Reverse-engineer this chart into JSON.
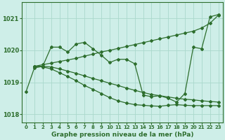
{
  "title": "Graphe pression niveau de la mer (hPa)",
  "background_color": "#ceeee8",
  "grid_color": "#aad8cc",
  "line_color": "#2d6e2d",
  "ylim": [
    1017.75,
    1021.5
  ],
  "yticks": [
    1018,
    1019,
    1020,
    1021
  ],
  "xticks": [
    0,
    1,
    2,
    3,
    4,
    5,
    6,
    7,
    8,
    9,
    10,
    11,
    12,
    13,
    14,
    15,
    16,
    17,
    18,
    19,
    20,
    21,
    22,
    23
  ],
  "series": [
    {
      "x": [
        1,
        2,
        3,
        4,
        5,
        6,
        7,
        8,
        9,
        10,
        11,
        12,
        13,
        14,
        15,
        16,
        17,
        18,
        19,
        20,
        21,
        22,
        23
      ],
      "y": [
        1019.5,
        1019.55,
        1019.6,
        1019.65,
        1019.7,
        1019.75,
        1019.82,
        1019.88,
        1019.95,
        1020.0,
        1020.06,
        1020.12,
        1020.18,
        1020.24,
        1020.3,
        1020.36,
        1020.42,
        1020.48,
        1020.54,
        1020.6,
        1020.7,
        1020.85,
        1021.1
      ]
    },
    {
      "x": [
        0,
        1,
        2,
        3,
        4,
        5,
        6,
        7,
        8,
        9,
        10,
        11,
        12,
        13,
        14,
        15,
        16,
        17,
        18,
        19,
        20,
        21,
        22,
        23
      ],
      "y": [
        1018.7,
        1019.45,
        1019.5,
        1020.1,
        1020.1,
        1019.95,
        1020.2,
        1020.25,
        1020.05,
        1019.85,
        1019.62,
        1019.72,
        1019.72,
        1019.58,
        1018.6,
        1018.55,
        1018.58,
        1018.5,
        1018.38,
        1018.65,
        1020.1,
        1020.05,
        1021.05,
        1021.12
      ]
    },
    {
      "x": [
        1,
        2,
        3,
        4,
        5,
        6,
        7,
        8,
        9,
        10,
        11,
        12,
        13,
        14,
        15,
        16,
        17,
        18,
        19,
        20,
        21,
        22,
        23
      ],
      "y": [
        1019.5,
        1019.5,
        1019.48,
        1019.42,
        1019.35,
        1019.28,
        1019.2,
        1019.12,
        1019.05,
        1018.97,
        1018.9,
        1018.82,
        1018.75,
        1018.68,
        1018.62,
        1018.58,
        1018.54,
        1018.5,
        1018.47,
        1018.45,
        1018.42,
        1018.4,
        1018.38
      ]
    },
    {
      "x": [
        1,
        2,
        3,
        4,
        5,
        6,
        7,
        8,
        9,
        10,
        11,
        12,
        13,
        14,
        15,
        16,
        17,
        18,
        19,
        20,
        21,
        22,
        23
      ],
      "y": [
        1019.5,
        1019.48,
        1019.42,
        1019.3,
        1019.18,
        1019.05,
        1018.9,
        1018.78,
        1018.65,
        1018.52,
        1018.42,
        1018.35,
        1018.3,
        1018.28,
        1018.26,
        1018.25,
        1018.28,
        1018.3,
        1018.28,
        1018.27,
        1018.27,
        1018.27,
        1018.27
      ]
    }
  ]
}
